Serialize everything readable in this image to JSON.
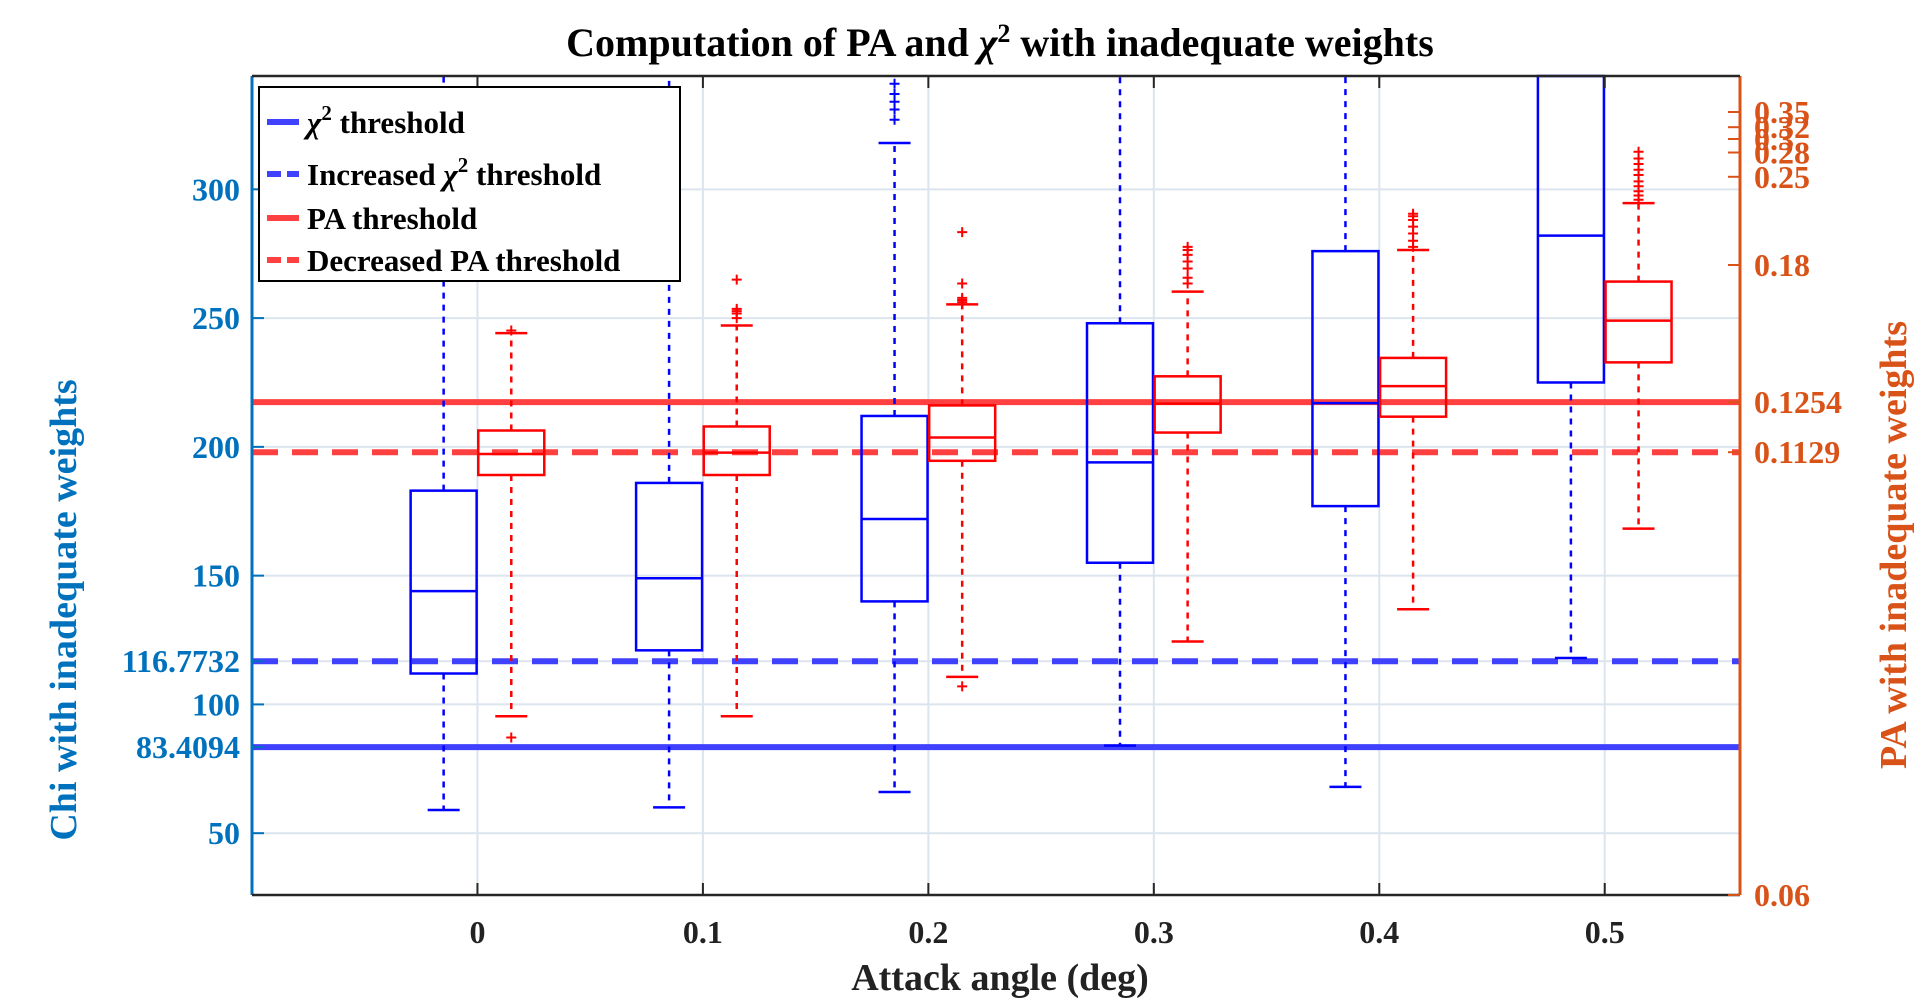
{
  "chart_data": {
    "type": "box",
    "title": "Computation of PA and χ² with inadequate weights",
    "title_parts": [
      "Computation of PA and ",
      "χ",
      "2",
      " with inadequate weights"
    ],
    "xlabel": "Attack angle (deg)",
    "ylabel_left": "Chi with inadequate weights",
    "ylabel_right": "PA with inadequate weights",
    "categories": [
      "0",
      "0.1",
      "0.2",
      "0.3",
      "0.4",
      "0.5"
    ],
    "x_values": [
      0,
      0.1,
      0.2,
      0.3,
      0.4,
      0.5
    ],
    "xlim": [
      -0.1,
      0.56
    ],
    "ylim_left": [
      26,
      344
    ],
    "ylim_right": [
      0.06,
      0.45
    ],
    "right_axis_scale": "reciprocal",
    "grid": true,
    "legend_placement": "top-left",
    "yticks_left": [
      "50",
      "83.4094",
      "100",
      "116.7732",
      "150",
      "200",
      "250",
      "300"
    ],
    "yticks_left_values": [
      50,
      83.4094,
      100,
      116.7732,
      150,
      200,
      250,
      300
    ],
    "yticks_right": [
      "0.06",
      "0.1129",
      "0.1254",
      "0.18",
      "0.25",
      "0.28",
      "0.3",
      "0.32",
      "0.35"
    ],
    "yticks_right_values": [
      0.06,
      0.1129,
      0.1254,
      0.18,
      0.25,
      0.28,
      0.3,
      0.32,
      0.35
    ],
    "series": [
      {
        "name": "Chi with inadequate weights",
        "axis": "left",
        "color": "#0000FF",
        "boxes": [
          {
            "x": 0,
            "whisker_low": 59,
            "q1": 112,
            "median": 144,
            "q3": 183,
            "whisker_high": 344,
            "outliers": []
          },
          {
            "x": 0.1,
            "whisker_low": 60,
            "q1": 121,
            "median": 149,
            "q3": 186,
            "whisker_high": 344,
            "outliers": []
          },
          {
            "x": 0.2,
            "whisker_low": 66,
            "q1": 140,
            "median": 172,
            "q3": 212,
            "whisker_high": 318,
            "outliers": [
              327,
              331,
              334,
              337,
              341
            ]
          },
          {
            "x": 0.3,
            "whisker_low": 84,
            "q1": 155,
            "median": 194,
            "q3": 248,
            "whisker_high": 344,
            "outliers": []
          },
          {
            "x": 0.4,
            "whisker_low": 68,
            "q1": 177,
            "median": 217,
            "q3": 276,
            "whisker_high": 344,
            "outliers": []
          },
          {
            "x": 0.5,
            "whisker_low": 118,
            "q1": 225,
            "median": 282,
            "q3": 344,
            "whisker_high": 344,
            "outliers": []
          }
        ]
      },
      {
        "name": "PA with inadequate weights",
        "axis": "right",
        "color": "#FF0000",
        "boxes": [
          {
            "x": 0,
            "whisker_low": 0.074,
            "q1": 0.108,
            "median": 0.1125,
            "q3": 0.118,
            "whisker_high": 0.148,
            "outliers": [
              0.072,
              0.149
            ]
          },
          {
            "x": 0.1,
            "whisker_low": 0.074,
            "q1": 0.108,
            "median": 0.1128,
            "q3": 0.119,
            "whisker_high": 0.151,
            "outliers": [
              0.154,
              0.156,
              0.157,
              0.158,
              0.172
            ]
          },
          {
            "x": 0.2,
            "whisker_low": 0.078,
            "q1": 0.111,
            "median": 0.1163,
            "q3": 0.1245,
            "whisker_high": 0.16,
            "outliers": [
              0.077,
              0.161,
              0.162,
              0.163,
              0.17,
              0.201
            ]
          },
          {
            "x": 0.3,
            "whisker_low": 0.082,
            "q1": 0.1175,
            "median": 0.125,
            "q3": 0.133,
            "whisker_high": 0.166,
            "outliers": [
              0.17,
              0.173,
              0.178,
              0.182,
              0.186,
              0.189,
              0.191
            ]
          },
          {
            "x": 0.4,
            "whisker_low": 0.086,
            "q1": 0.1215,
            "median": 0.13,
            "q3": 0.139,
            "whisker_high": 0.189,
            "outliers": [
              0.191,
              0.195,
              0.2,
              0.205,
              0.21,
              0.213,
              0.215
            ]
          },
          {
            "x": 0.5,
            "whisker_low": 0.098,
            "q1": 0.1375,
            "median": 0.153,
            "q3": 0.171,
            "whisker_high": 0.224,
            "outliers": [
              0.227,
              0.231,
              0.235,
              0.24,
              0.245,
              0.252,
              0.258,
              0.265,
              0.272,
              0.281
            ]
          }
        ]
      }
    ],
    "thresholds": [
      {
        "name": "χ² threshold",
        "axis": "left",
        "value": 83.4094,
        "color": "#0000FF",
        "style": "solid"
      },
      {
        "name": "Increased χ² threshold",
        "axis": "left",
        "value": 116.7732,
        "color": "#0000FF",
        "style": "dashed"
      },
      {
        "name": "PA threshold",
        "axis": "right",
        "value": 0.1254,
        "color": "#FF0000",
        "style": "solid"
      },
      {
        "name": "Decreased PA threshold",
        "axis": "right",
        "value": 0.1129,
        "color": "#FF0000",
        "style": "dashed"
      }
    ],
    "legend": [
      {
        "parts": [
          "χ",
          "2",
          " threshold"
        ],
        "color": "#4040FF",
        "style": "solid"
      },
      {
        "parts": [
          "Increased ",
          "χ",
          "2",
          " threshold"
        ],
        "color": "#4040FF",
        "style": "dashed"
      },
      {
        "parts": [
          "PA threshold"
        ],
        "color": "#FF4040",
        "style": "solid"
      },
      {
        "parts": [
          "Decreased PA threshold"
        ],
        "color": "#FF4040",
        "style": "dashed"
      }
    ],
    "colors": {
      "left_axis": "#0072BD",
      "right_axis": "#D95319",
      "chi_box": "#0000FF",
      "pa_box": "#FF0000",
      "chi_threshold": "#4040FF",
      "pa_threshold": "#FF4040",
      "grid": "#DCE4EE"
    }
  }
}
